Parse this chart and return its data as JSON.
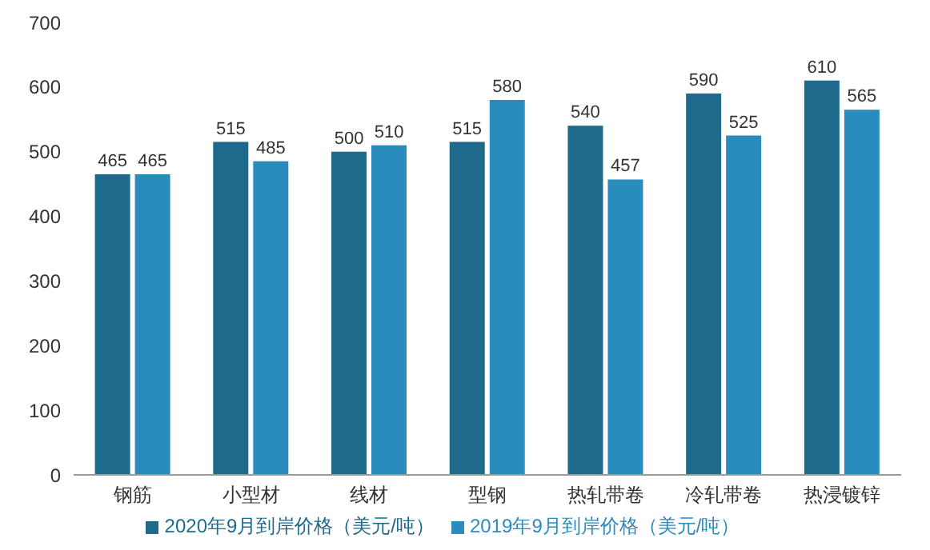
{
  "chart_data": {
    "type": "bar",
    "categories": [
      "钢筋",
      "小型材",
      "线材",
      "型钢",
      "热轧带卷",
      "冷轧带卷",
      "热浸镀锌"
    ],
    "series": [
      {
        "name": "2020年9月到岸价格（美元/吨）",
        "color": "#1d6a8c",
        "values": [
          465,
          515,
          500,
          515,
          540,
          590,
          610
        ]
      },
      {
        "name": "2019年9月到岸价格（美元/吨）",
        "color": "#2a8bbd",
        "values": [
          465,
          485,
          510,
          580,
          457,
          525,
          565
        ]
      }
    ],
    "ylim": [
      0,
      700
    ],
    "yticks": [
      0,
      100,
      200,
      300,
      400,
      500,
      600,
      700
    ],
    "grid": false,
    "legend": "bottom",
    "data_labels": true
  }
}
